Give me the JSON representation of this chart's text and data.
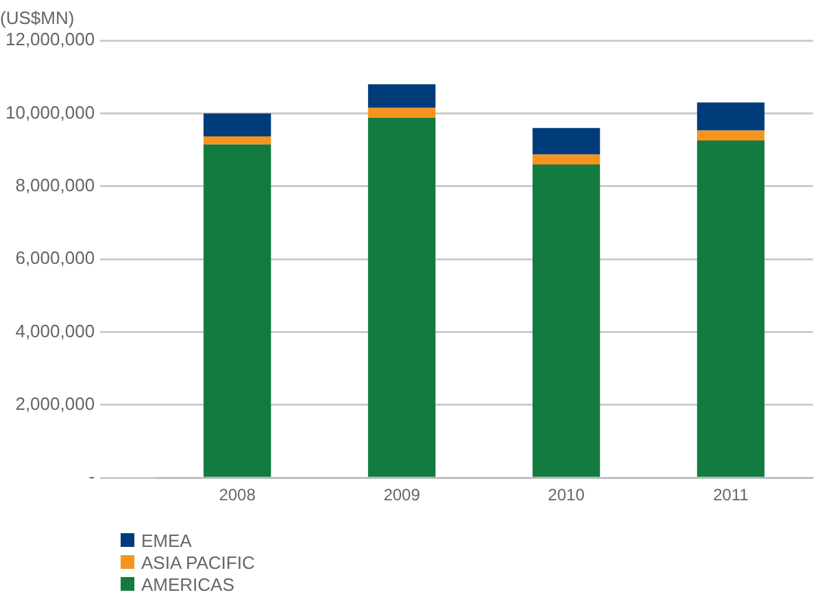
{
  "chart_data": {
    "type": "bar",
    "ylabel": "(US$MN)",
    "categories": [
      "2008",
      "2009",
      "2010",
      "2011"
    ],
    "stacked": true,
    "series": [
      {
        "name": "AMERICAS",
        "color": "#137b40",
        "values": [
          9150000,
          9880000,
          8600000,
          9260000
        ]
      },
      {
        "name": "ASIA PACIFIC",
        "color": "#f7941d",
        "values": [
          220000,
          270000,
          270000,
          270000
        ]
      },
      {
        "name": "EMEA",
        "color": "#003c7a",
        "values": [
          630000,
          650000,
          730000,
          770000
        ]
      }
    ],
    "ylim": [
      0,
      12000000
    ],
    "yticks": [
      {
        "value": 0,
        "label": "-"
      },
      {
        "value": 2000000,
        "label": "2,000,000"
      },
      {
        "value": 4000000,
        "label": "4,000,000"
      },
      {
        "value": 6000000,
        "label": "6,000,000"
      },
      {
        "value": 8000000,
        "label": "8,000,000"
      },
      {
        "value": 10000000,
        "label": "10,000,000"
      },
      {
        "value": 12000000,
        "label": "12,000,000"
      }
    ],
    "grid": "y",
    "legend": "bottom left"
  }
}
